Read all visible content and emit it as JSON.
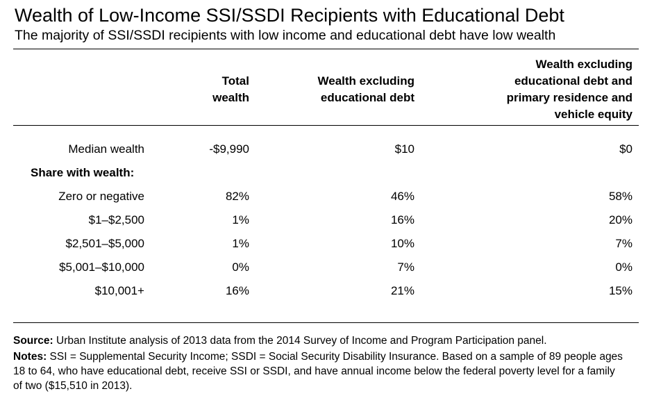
{
  "title": "Wealth of Low-Income SSI/SSDI Recipients with Educational Debt",
  "subtitle": "The majority of SSI/SSDI recipients with low income and educational debt have low wealth",
  "columns": [
    {
      "lines": [
        "Total",
        "wealth"
      ]
    },
    {
      "lines": [
        "Wealth excluding",
        "educational debt"
      ]
    },
    {
      "lines": [
        "Wealth excluding",
        "educational debt and",
        "primary residence and",
        "vehicle equity"
      ]
    }
  ],
  "rows": {
    "median": {
      "label": "Median wealth",
      "values": [
        "-$9,990",
        "$10",
        "$0"
      ]
    },
    "share_header": "Share with wealth:",
    "bands": [
      {
        "label": "Zero or negative",
        "values": [
          "82%",
          "46%",
          "58%"
        ]
      },
      {
        "label": "$1–$2,500",
        "values": [
          "1%",
          "16%",
          "20%"
        ]
      },
      {
        "label": "$2,501–$5,000",
        "values": [
          "1%",
          "10%",
          "7%"
        ]
      },
      {
        "label": "$5,001–$10,000",
        "values": [
          "0%",
          "7%",
          "0%"
        ]
      },
      {
        "label": "$10,001+",
        "values": [
          "16%",
          "21%",
          "15%"
        ]
      }
    ]
  },
  "footer": {
    "source_label": "Source:",
    "source_text": " Urban Institute analysis of 2013 data from the 2014 Survey of Income and Program Participation panel.",
    "notes_label": "Notes:",
    "notes_text": " SSI = Supplemental Security Income; SSDI = Social Security Disability Insurance. Based on a sample of 89 people ages 18 to 64, who have educational debt, receive SSI or SSDI, and have annual income below the federal poverty level for a family of two ($15,510 in 2013)."
  }
}
